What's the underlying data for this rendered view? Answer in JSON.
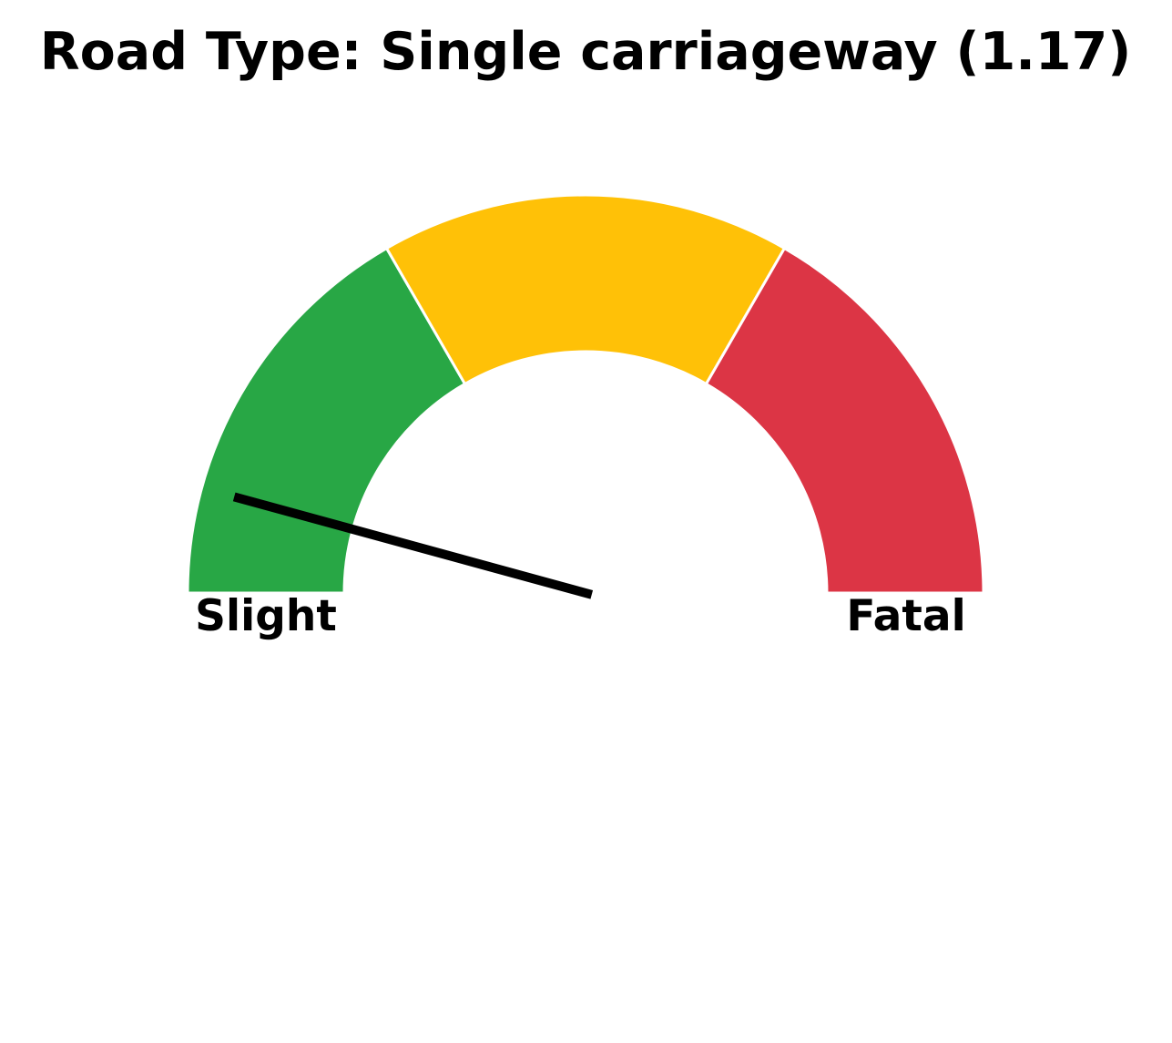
{
  "chart_data": {
    "type": "gauge",
    "title": "Road Type: Single carriageway (1.17)",
    "value": 1.17,
    "range": [
      1,
      3
    ],
    "bands": [
      {
        "from": 1.0,
        "to": 1.6667,
        "color": "#28a745"
      },
      {
        "from": 1.6667,
        "to": 2.3333,
        "color": "#ffc107"
      },
      {
        "from": 2.3333,
        "to": 3.0,
        "color": "#dc3545"
      }
    ],
    "min_label": "Slight",
    "max_label": "Fatal",
    "needle_color": "#000000"
  }
}
